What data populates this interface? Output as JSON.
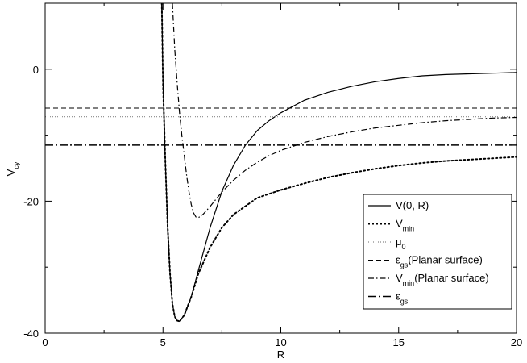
{
  "chart_data": {
    "type": "line",
    "title": "",
    "xlabel": "R",
    "ylabel": {
      "base": "V",
      "sub": "cyl"
    },
    "xlim": [
      0,
      20
    ],
    "ylim": [
      -40,
      10
    ],
    "xticks": [
      0,
      5,
      10,
      15,
      20
    ],
    "yticks": [
      -40,
      -20,
      0
    ],
    "grid": false,
    "legend_position": "bottom-right",
    "series": [
      {
        "key": "v0r",
        "name": {
          "base": "V(0,  R)",
          "sub": ""
        },
        "style": "solid",
        "color": "#000000",
        "points": [
          [
            4.95,
            10
          ],
          [
            5.0,
            -2
          ],
          [
            5.1,
            -14
          ],
          [
            5.2,
            -24
          ],
          [
            5.3,
            -31
          ],
          [
            5.4,
            -35.5
          ],
          [
            5.5,
            -37.5
          ],
          [
            5.6,
            -38.1
          ],
          [
            5.7,
            -38.2
          ],
          [
            5.9,
            -37.3
          ],
          [
            6.2,
            -34.5
          ],
          [
            6.5,
            -30.5
          ],
          [
            7.0,
            -24
          ],
          [
            7.5,
            -18.5
          ],
          [
            8.0,
            -14.5
          ],
          [
            8.5,
            -11.5
          ],
          [
            9.0,
            -9.3
          ],
          [
            9.5,
            -7.8
          ],
          [
            10.0,
            -6.6
          ],
          [
            11.0,
            -4.7
          ],
          [
            12.0,
            -3.5
          ],
          [
            13.0,
            -2.6
          ],
          [
            14.0,
            -1.9
          ],
          [
            15.0,
            -1.4
          ],
          [
            16.0,
            -1.0
          ],
          [
            17.0,
            -0.8
          ],
          [
            18.0,
            -0.7
          ],
          [
            19.0,
            -0.6
          ],
          [
            20.0,
            -0.5
          ]
        ]
      },
      {
        "key": "vmin",
        "name": {
          "base": "V",
          "sub": "min"
        },
        "style": "dotted",
        "color": "#000000",
        "points": [
          [
            4.95,
            10
          ],
          [
            5.0,
            -2
          ],
          [
            5.1,
            -14
          ],
          [
            5.2,
            -24
          ],
          [
            5.3,
            -31
          ],
          [
            5.4,
            -35.5
          ],
          [
            5.5,
            -37.5
          ],
          [
            5.6,
            -38.1
          ],
          [
            5.7,
            -38.2
          ],
          [
            5.9,
            -37.3
          ],
          [
            6.2,
            -34.5
          ],
          [
            6.5,
            -31
          ],
          [
            7.0,
            -27
          ],
          [
            7.5,
            -24
          ],
          [
            8.0,
            -22
          ],
          [
            9.0,
            -19.5
          ],
          [
            10.0,
            -18.3
          ],
          [
            11.0,
            -17.3
          ],
          [
            12.0,
            -16.4
          ],
          [
            13.0,
            -15.7
          ],
          [
            14.0,
            -15.1
          ],
          [
            15.0,
            -14.6
          ],
          [
            16.0,
            -14.2
          ],
          [
            17.0,
            -13.9
          ],
          [
            18.0,
            -13.7
          ],
          [
            19.0,
            -13.5
          ],
          [
            20.0,
            -13.3
          ]
        ]
      },
      {
        "key": "mu0",
        "name": {
          "base": "μ",
          "sub": "0"
        },
        "style": "fine-dotted",
        "color": "#888888",
        "points": [
          [
            0,
            -7.2
          ],
          [
            20,
            -7.2
          ]
        ]
      },
      {
        "key": "egs_planar",
        "name": {
          "base": "ε",
          "sub": "gs",
          "suffix": "(Planar surface)"
        },
        "style": "dashed",
        "color": "#000000",
        "points": [
          [
            0,
            -5.9
          ],
          [
            20,
            -5.9
          ]
        ]
      },
      {
        "key": "vmin_planar",
        "name": {
          "base": "V",
          "sub": "min",
          "suffix": "(Planar surface)"
        },
        "style": "dashdot",
        "color": "#000000",
        "points": [
          [
            5.4,
            10
          ],
          [
            5.5,
            3
          ],
          [
            5.6,
            -2
          ],
          [
            5.7,
            -6.5
          ],
          [
            5.8,
            -10
          ],
          [
            5.9,
            -13
          ],
          [
            6.0,
            -16
          ],
          [
            6.1,
            -18.5
          ],
          [
            6.2,
            -20.5
          ],
          [
            6.3,
            -21.8
          ],
          [
            6.4,
            -22.4
          ],
          [
            6.5,
            -22.5
          ],
          [
            6.7,
            -22.0
          ],
          [
            7.0,
            -20.8
          ],
          [
            7.5,
            -18.6
          ],
          [
            8.0,
            -16.8
          ],
          [
            8.5,
            -15.3
          ],
          [
            9.0,
            -14.1
          ],
          [
            9.5,
            -13.1
          ],
          [
            10.0,
            -12.3
          ],
          [
            11.0,
            -11.1
          ],
          [
            12.0,
            -10.2
          ],
          [
            13.0,
            -9.5
          ],
          [
            14.0,
            -8.9
          ],
          [
            15.0,
            -8.5
          ],
          [
            16.0,
            -8.1
          ],
          [
            17.0,
            -7.8
          ],
          [
            18.0,
            -7.6
          ],
          [
            19.0,
            -7.4
          ],
          [
            20.0,
            -7.3
          ]
        ]
      },
      {
        "key": "egs",
        "name": {
          "base": "ε",
          "sub": "gs"
        },
        "style": "dashdot-wide",
        "color": "#000000",
        "points": [
          [
            0,
            -11.5
          ],
          [
            20,
            -11.5
          ]
        ]
      }
    ]
  }
}
